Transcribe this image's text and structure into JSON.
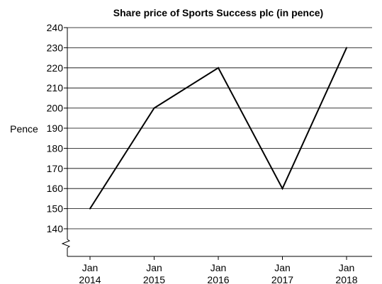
{
  "chart_data": {
    "type": "line",
    "title": "Share price of Sports Success plc (in pence)",
    "ylabel": "Pence",
    "xlabel": "",
    "categories": [
      [
        "Jan",
        "2014"
      ],
      [
        "Jan",
        "2015"
      ],
      [
        "Jan",
        "2016"
      ],
      [
        "Jan",
        "2017"
      ],
      [
        "Jan",
        "2018"
      ]
    ],
    "values": [
      150,
      200,
      220,
      160,
      230
    ],
    "ylim": [
      140,
      240
    ],
    "yticks": [
      140,
      150,
      160,
      170,
      180,
      190,
      200,
      210,
      220,
      230,
      240
    ],
    "y_axis_break": true,
    "grid": true,
    "line_color": "#000000",
    "grid_color": "#000000"
  }
}
